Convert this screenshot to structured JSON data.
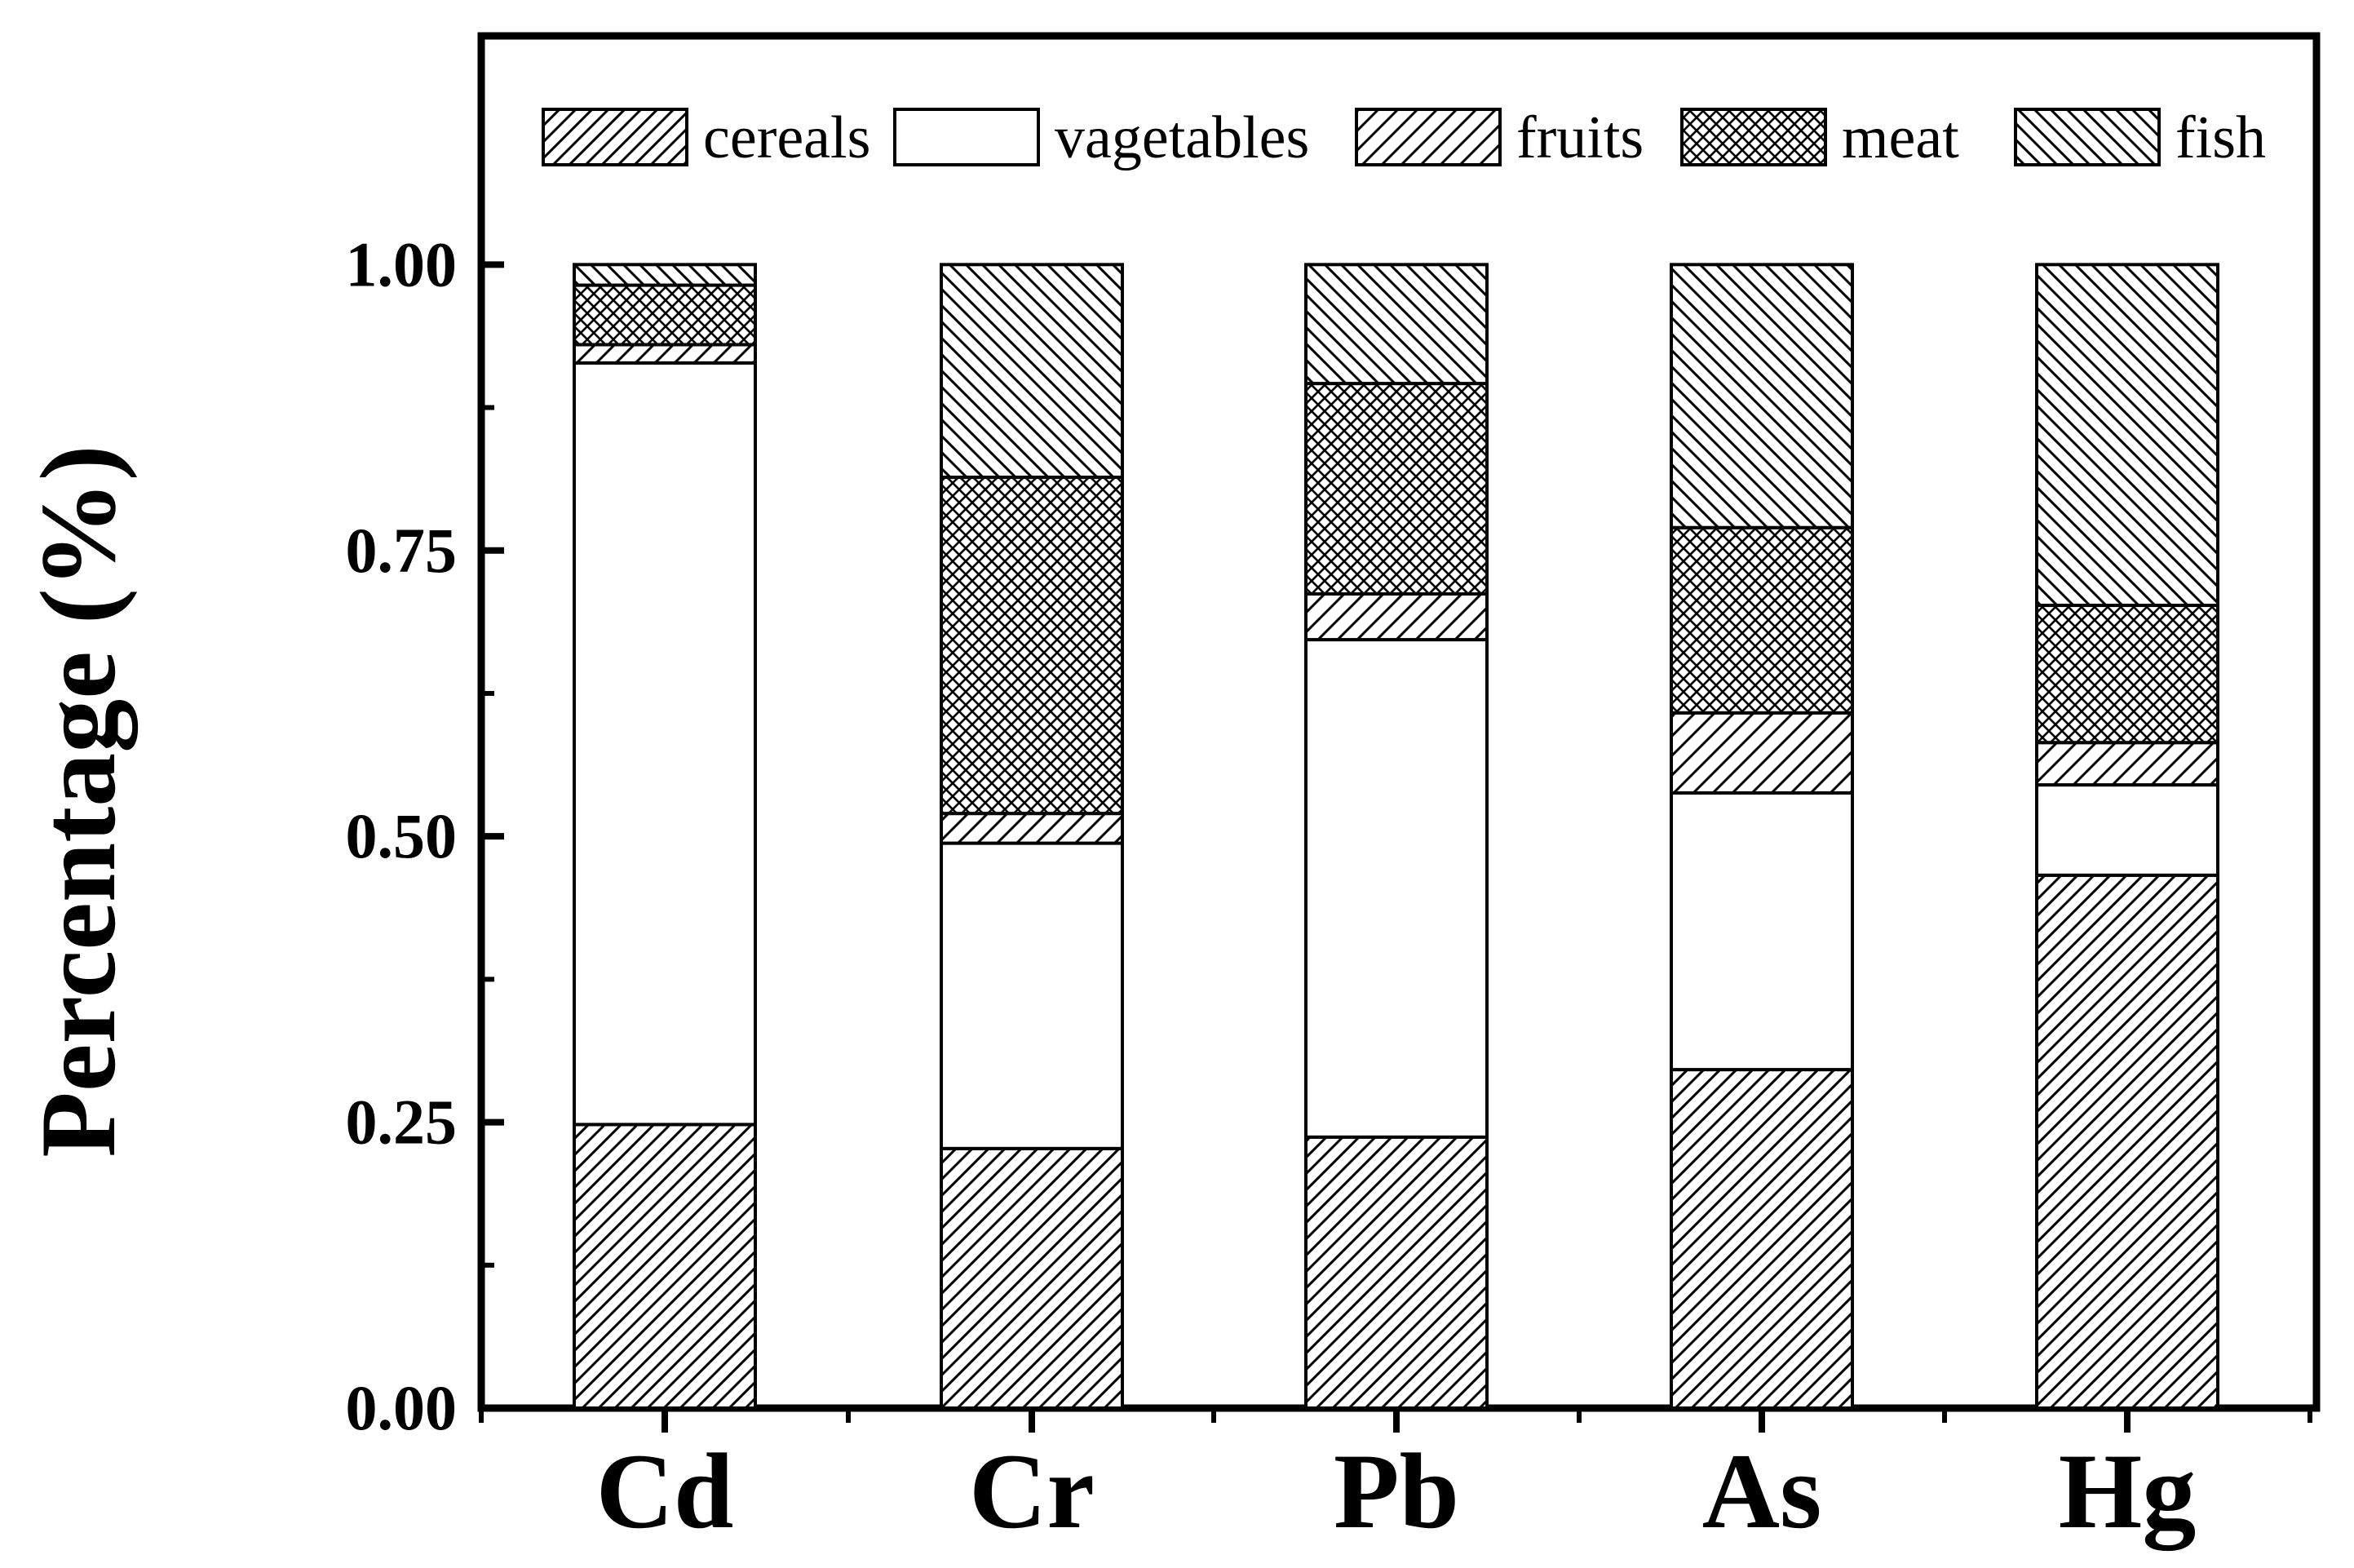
{
  "chart_data": {
    "type": "bar",
    "stacked": true,
    "title": "",
    "xlabel": "",
    "ylabel": "Percentage (%)",
    "ylim": [
      0,
      1.2
    ],
    "categories": [
      "Cd",
      "Cr",
      "Pb",
      "As",
      "Hg"
    ],
    "yticks": [
      "0.00",
      "0.25",
      "0.50",
      "0.75",
      "1.00"
    ],
    "legend_position": "top",
    "series": [
      {
        "name": "cereals",
        "pattern": "hatch-forward",
        "values": [
          0.248,
          0.227,
          0.237,
          0.296,
          0.466
        ]
      },
      {
        "name": "vagetables",
        "pattern": "solid-white",
        "values": [
          0.666,
          0.267,
          0.435,
          0.242,
          0.079
        ]
      },
      {
        "name": "fruits",
        "pattern": "hatch-forward-sparse",
        "values": [
          0.016,
          0.026,
          0.04,
          0.07,
          0.037
        ]
      },
      {
        "name": "meat",
        "pattern": "crosshatch",
        "values": [
          0.052,
          0.294,
          0.184,
          0.162,
          0.12
        ]
      },
      {
        "name": "fish",
        "pattern": "hatch-backward",
        "values": [
          0.018,
          0.186,
          0.104,
          0.23,
          0.298
        ]
      }
    ]
  }
}
